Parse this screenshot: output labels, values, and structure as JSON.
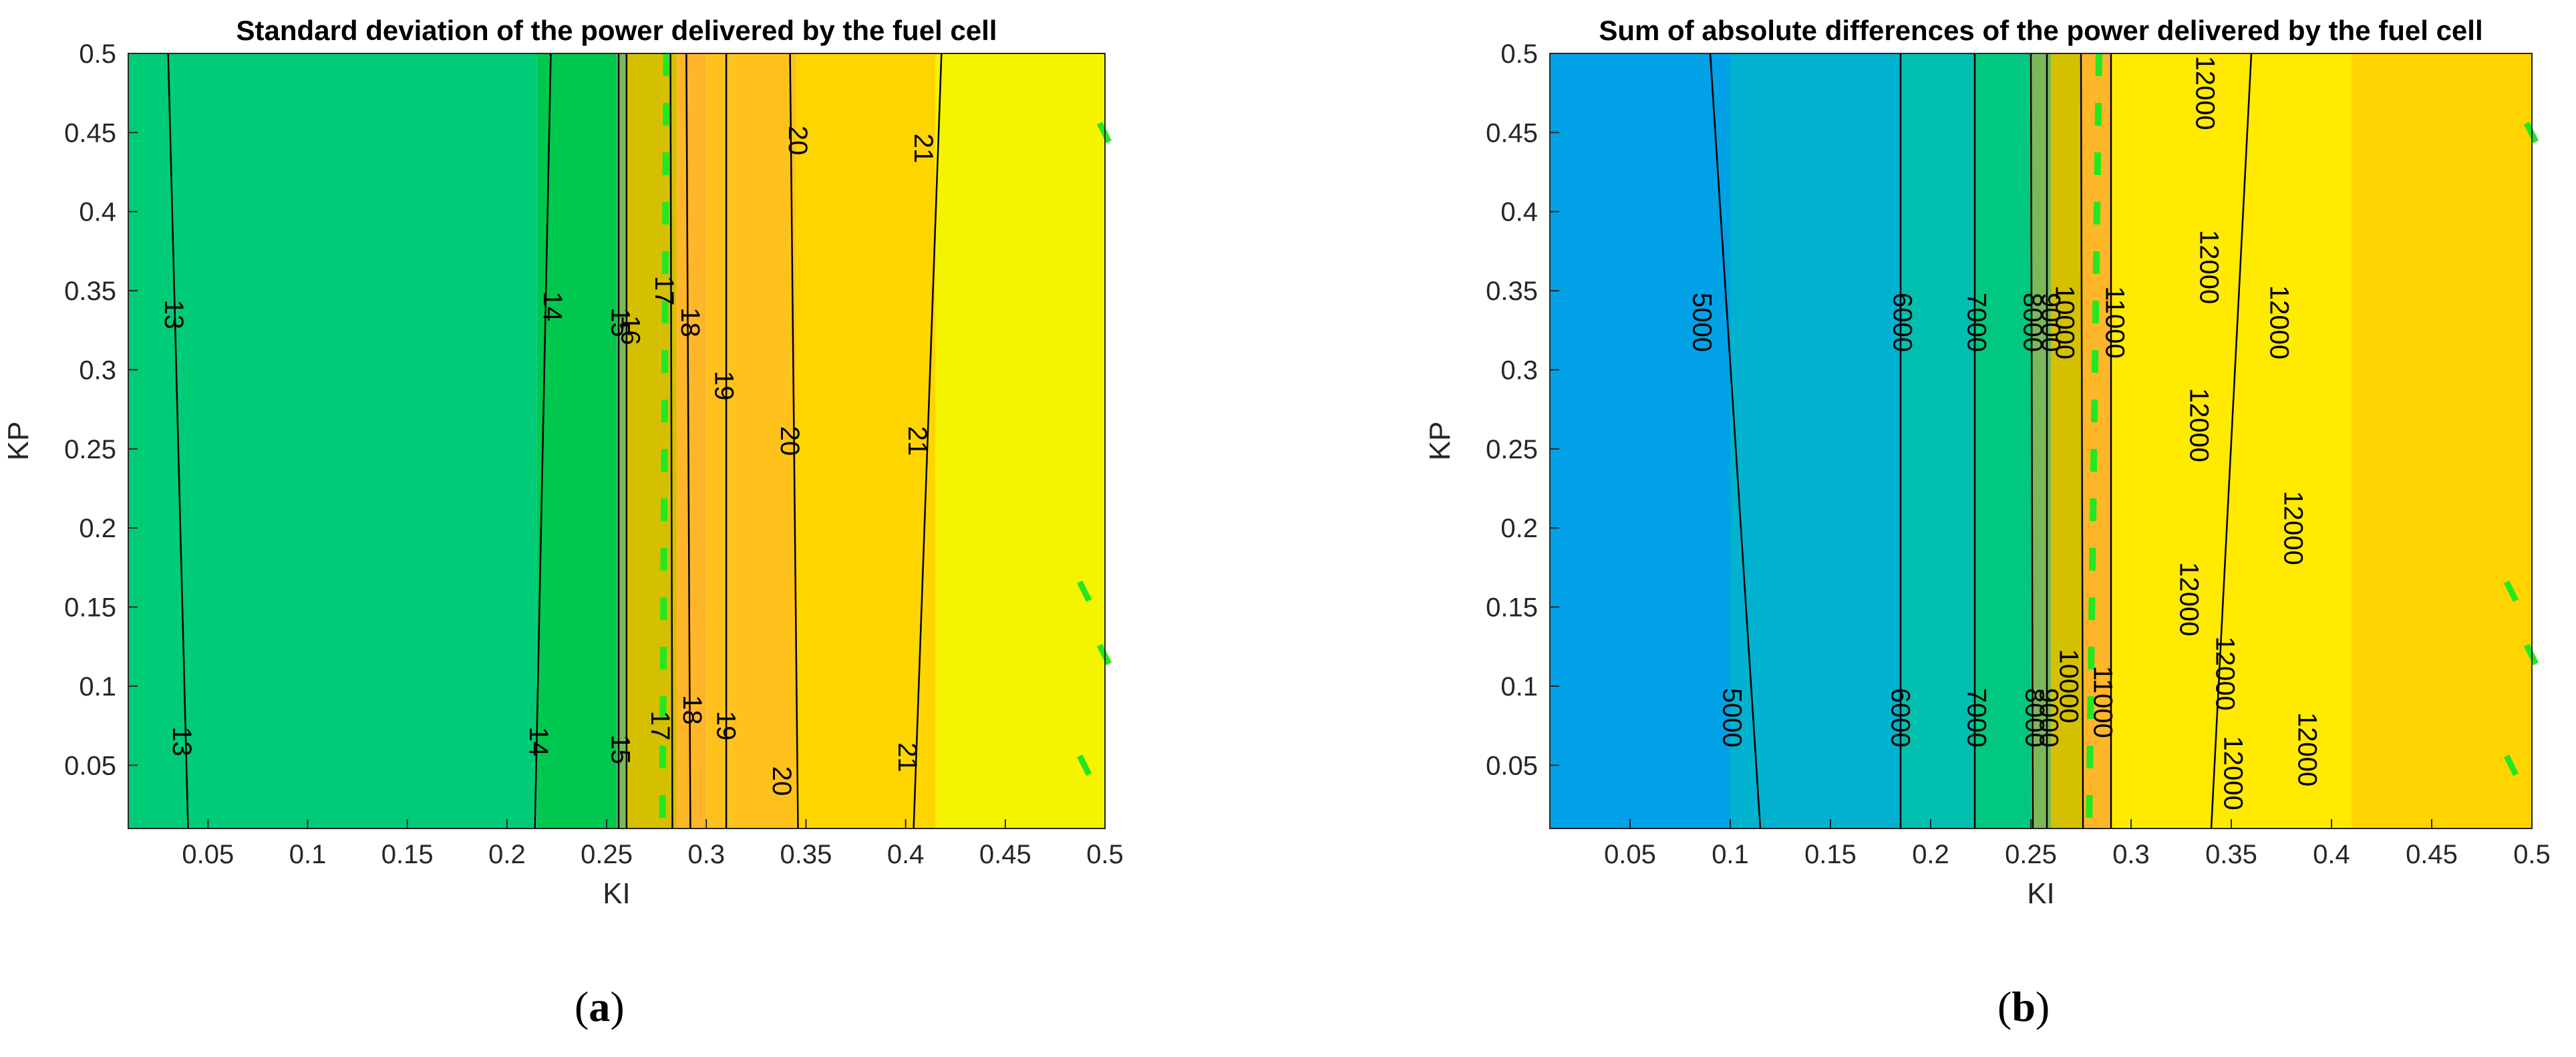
{
  "chart_data": [
    {
      "type": "heatmap",
      "title": "Standard deviation of the power delivered by the fuel cell",
      "xlabel": "KI",
      "ylabel": "KP",
      "xlim": [
        0.01,
        0.5
      ],
      "ylim": [
        0.01,
        0.5
      ],
      "xticks": [
        0.05,
        0.1,
        0.15,
        0.2,
        0.25,
        0.3,
        0.35,
        0.4,
        0.45,
        0.5
      ],
      "xtick_labels": [
        "0.05",
        "0.1",
        "0.15",
        "0.2",
        "0.25",
        "0.3",
        "0.35",
        "0.4",
        "0.45",
        "0.5"
      ],
      "yticks": [
        0.05,
        0.1,
        0.15,
        0.2,
        0.25,
        0.3,
        0.35,
        0.4,
        0.45,
        0.5
      ],
      "ytick_labels": [
        "0.05",
        "0.1",
        "0.15",
        "0.2",
        "0.25",
        "0.3",
        "0.35",
        "0.4",
        "0.45",
        "0.5"
      ],
      "bands": [
        {
          "x0": 0.01,
          "x1": 0.215,
          "color": "#00cc78"
        },
        {
          "x0": 0.215,
          "x1": 0.255,
          "color": "#00c84e"
        },
        {
          "x0": 0.255,
          "x1": 0.26,
          "color": "#7ab85a"
        },
        {
          "x0": 0.26,
          "x1": 0.285,
          "color": "#d4c000"
        },
        {
          "x0": 0.285,
          "x1": 0.3,
          "color": "#ffb628"
        },
        {
          "x0": 0.3,
          "x1": 0.345,
          "color": "#ffc21c"
        },
        {
          "x0": 0.345,
          "x1": 0.415,
          "color": "#ffd500"
        },
        {
          "x0": 0.415,
          "x1": 0.5,
          "color": "#f4f400"
        }
      ],
      "contours": [
        {
          "level": "13",
          "points": [
            [
              0.03,
              0.5
            ],
            [
              0.04,
              0.01
            ]
          ],
          "label_points": [
            [
              0.032,
              0.335
            ],
            [
              0.036,
              0.065
            ]
          ]
        },
        {
          "level": "14",
          "points": [
            [
              0.222,
              0.5
            ],
            [
              0.214,
              0.01
            ]
          ],
          "label_points": [
            [
              0.222,
              0.34
            ],
            [
              0.215,
              0.065
            ]
          ]
        },
        {
          "level": "15",
          "points": [
            [
              0.256,
              0.5
            ],
            [
              0.256,
              0.01
            ]
          ],
          "label_points": [
            [
              0.256,
              0.33
            ],
            [
              0.256,
              0.06
            ]
          ]
        },
        {
          "level": "16",
          "points": [
            [
              0.26,
              0.5
            ],
            [
              0.26,
              0.01
            ]
          ],
          "label_points": [
            [
              0.261,
              0.325
            ]
          ]
        },
        {
          "level": "17",
          "points": [
            [
              0.282,
              0.5
            ],
            [
              0.283,
              0.01
            ]
          ],
          "label_points": [
            [
              0.278,
              0.35
            ],
            [
              0.276,
              0.075
            ]
          ]
        },
        {
          "level": "18",
          "points": [
            [
              0.29,
              0.5
            ],
            [
              0.292,
              0.01
            ]
          ],
          "label_points": [
            [
              0.291,
              0.33
            ],
            [
              0.292,
              0.085
            ]
          ]
        },
        {
          "level": "19",
          "points": [
            [
              0.31,
              0.5
            ],
            [
              0.31,
              0.01
            ]
          ],
          "label_points": [
            [
              0.308,
              0.29
            ],
            [
              0.309,
              0.075
            ]
          ]
        },
        {
          "level": "20",
          "points": [
            [
              0.342,
              0.5
            ],
            [
              0.346,
              0.01
            ]
          ],
          "label_points": [
            [
              0.345,
              0.445
            ],
            [
              0.341,
              0.255
            ],
            [
              0.337,
              0.04
            ]
          ]
        },
        {
          "level": "21",
          "points": [
            [
              0.418,
              0.5
            ],
            [
              0.404,
              0.01
            ]
          ],
          "label_points": [
            [
              0.408,
              0.44
            ],
            [
              0.405,
              0.255
            ],
            [
              0.4,
              0.055
            ]
          ]
        }
      ],
      "dashed_boundary": [
        [
          0.28,
          0.5
        ],
        [
          0.278,
          0.01
        ]
      ],
      "edge_marks": [
        [
          0.5,
          0.45
        ],
        [
          0.49,
          0.16
        ],
        [
          0.5,
          0.12
        ],
        [
          0.49,
          0.05
        ]
      ],
      "panel_label": "a"
    },
    {
      "type": "heatmap",
      "title": "Sum of absolute differences of the power delivered by the fuel cell",
      "xlabel": "KI",
      "ylabel": "KP",
      "xlim": [
        0.01,
        0.5
      ],
      "ylim": [
        0.01,
        0.5
      ],
      "xticks": [
        0.05,
        0.1,
        0.15,
        0.2,
        0.25,
        0.3,
        0.35,
        0.4,
        0.45,
        0.5
      ],
      "xtick_labels": [
        "0.05",
        "0.1",
        "0.15",
        "0.2",
        "0.25",
        "0.3",
        "0.35",
        "0.4",
        "0.45",
        "0.5"
      ],
      "yticks": [
        0.05,
        0.1,
        0.15,
        0.2,
        0.25,
        0.3,
        0.35,
        0.4,
        0.45,
        0.5
      ],
      "ytick_labels": [
        "0.05",
        "0.1",
        "0.15",
        "0.2",
        "0.25",
        "0.3",
        "0.35",
        "0.4",
        "0.45",
        "0.5"
      ],
      "bands": [
        {
          "x0": 0.01,
          "x1": 0.1,
          "color": "#00a1e6"
        },
        {
          "x0": 0.1,
          "x1": 0.185,
          "color": "#00b2cf"
        },
        {
          "x0": 0.185,
          "x1": 0.222,
          "color": "#00bfae"
        },
        {
          "x0": 0.222,
          "x1": 0.25,
          "color": "#00c881"
        },
        {
          "x0": 0.25,
          "x1": 0.26,
          "color": "#7ab85a"
        },
        {
          "x0": 0.26,
          "x1": 0.275,
          "color": "#d4c000"
        },
        {
          "x0": 0.275,
          "x1": 0.29,
          "color": "#ffb628"
        },
        {
          "x0": 0.29,
          "x1": 0.41,
          "color": "#ffea00"
        },
        {
          "x0": 0.41,
          "x1": 0.5,
          "color": "#ffd400"
        }
      ],
      "contours": [
        {
          "level": "5000",
          "points": [
            [
              0.09,
              0.5
            ],
            [
              0.115,
              0.01
            ]
          ],
          "label_points": [
            [
              0.085,
              0.33
            ],
            [
              0.1,
              0.08
            ]
          ]
        },
        {
          "level": "6000",
          "points": [
            [
              0.185,
              0.5
            ],
            [
              0.185,
              0.01
            ]
          ],
          "label_points": [
            [
              0.185,
              0.33
            ],
            [
              0.184,
              0.08
            ]
          ]
        },
        {
          "level": "7000",
          "points": [
            [
              0.222,
              0.5
            ],
            [
              0.222,
              0.01
            ]
          ],
          "label_points": [
            [
              0.222,
              0.33
            ],
            [
              0.222,
              0.08
            ]
          ]
        },
        {
          "level": "8000",
          "points": [
            [
              0.25,
              0.5
            ],
            [
              0.251,
              0.01
            ]
          ],
          "label_points": [
            [
              0.25,
              0.33
            ],
            [
              0.251,
              0.08
            ]
          ]
        },
        {
          "level": "9000",
          "points": [
            [
              0.258,
              0.5
            ],
            [
              0.258,
              0.01
            ]
          ],
          "label_points": [
            [
              0.259,
              0.33
            ],
            [
              0.258,
              0.08
            ]
          ]
        },
        {
          "level": "10000",
          "points": [
            [
              0.275,
              0.5
            ],
            [
              0.276,
              0.01
            ]
          ],
          "label_points": [
            [
              0.266,
              0.33
            ],
            [
              0.268,
              0.1
            ]
          ]
        },
        {
          "level": "11000",
          "points": [
            [
              0.29,
              0.5
            ],
            [
              0.29,
              0.01
            ]
          ],
          "label_points": [
            [
              0.291,
              0.33
            ],
            [
              0.285,
              0.09
            ]
          ]
        },
        {
          "level": "12000",
          "points": [
            [
              0.36,
              0.5
            ],
            [
              0.34,
              0.01
            ]
          ],
          "label_points": [
            [
              0.336,
              0.475
            ],
            [
              0.338,
              0.365
            ],
            [
              0.333,
              0.265
            ],
            [
              0.373,
              0.33
            ],
            [
              0.38,
              0.2
            ],
            [
              0.328,
              0.155
            ],
            [
              0.346,
              0.108
            ],
            [
              0.35,
              0.045
            ],
            [
              0.387,
              0.06
            ]
          ]
        }
      ],
      "dashed_boundary": [
        [
          0.284,
          0.5
        ],
        [
          0.279,
          0.01
        ]
      ],
      "edge_marks": [
        [
          0.5,
          0.45
        ],
        [
          0.49,
          0.16
        ],
        [
          0.5,
          0.12
        ],
        [
          0.49,
          0.05
        ]
      ],
      "panel_label": "b"
    }
  ]
}
